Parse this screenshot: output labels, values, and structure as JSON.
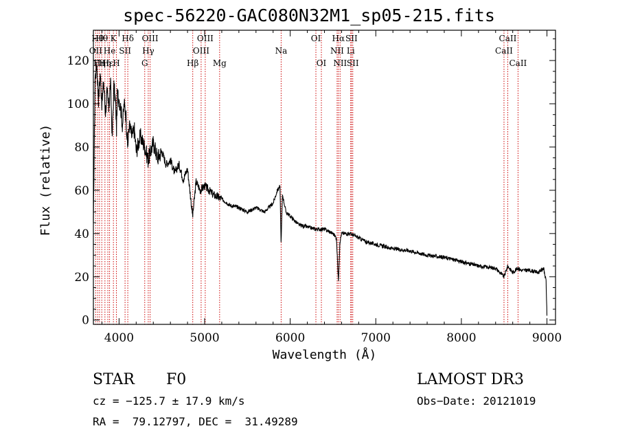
{
  "colors": {
    "line": "#000000",
    "marker": "#cc0000"
  },
  "chart_data": {
    "type": "line",
    "title": "spec-56220-GAC080N32M1_sp05-215.fits",
    "xlabel": "Wavelength (Å)",
    "ylabel": "Flux (relative)",
    "xlim": [
      3700,
      9100
    ],
    "ylim": [
      -2,
      134
    ],
    "xticks": [
      4000,
      5000,
      6000,
      7000,
      8000,
      9000
    ],
    "yticks": [
      0,
      20,
      40,
      60,
      80,
      100,
      120
    ],
    "series": [
      {
        "name": "spectrum",
        "x": [
          3700,
          3720,
          3740,
          3760,
          3780,
          3800,
          3820,
          3840,
          3860,
          3880,
          3900,
          3920,
          3940,
          3960,
          3970,
          3980,
          4000,
          4020,
          4040,
          4060,
          4080,
          4100,
          4120,
          4150,
          4180,
          4200,
          4250,
          4300,
          4340,
          4400,
          4450,
          4500,
          4550,
          4600,
          4650,
          4700,
          4750,
          4800,
          4860,
          4900,
          4950,
          5000,
          5050,
          5100,
          5150,
          5200,
          5300,
          5400,
          5500,
          5600,
          5700,
          5800,
          5850,
          5880,
          5893,
          5910,
          5950,
          6000,
          6050,
          6100,
          6200,
          6300,
          6400,
          6500,
          6540,
          6563,
          6580,
          6600,
          6700,
          6800,
          6900,
          7000,
          7200,
          7400,
          7600,
          7800,
          8000,
          8200,
          8400,
          8498,
          8542,
          8600,
          8662,
          8700,
          8800,
          8900,
          8960,
          8990,
          9000
        ],
        "y": [
          45,
          112,
          118,
          102,
          114,
          100,
          110,
          96,
          105,
          98,
          110,
          85,
          108,
          100,
          88,
          105,
          102,
          98,
          90,
          100,
          95,
          80,
          90,
          85,
          88,
          78,
          85,
          80,
          74,
          82,
          75,
          78,
          72,
          74,
          68,
          72,
          65,
          70,
          48,
          64,
          60,
          62,
          60,
          58,
          57,
          56,
          53,
          52,
          50,
          52,
          50,
          54,
          60,
          62,
          36,
          58,
          50,
          48,
          46,
          44,
          43,
          42,
          42,
          40,
          38,
          18,
          36,
          40,
          40,
          38,
          36,
          35,
          33,
          32,
          30,
          29,
          27,
          25,
          24,
          20,
          25,
          22,
          24,
          23,
          23,
          22,
          24,
          18,
          2
        ]
      }
    ],
    "line_markers": [
      {
        "wl": 3727,
        "label": "OII",
        "row": 2
      },
      {
        "wl": 3750,
        "label": "Hθ",
        "row": 1
      },
      {
        "wl": 3771,
        "label": "Hη",
        "row": 3
      },
      {
        "wl": 3798,
        "label": "Hθ",
        "row": 1
      },
      {
        "wl": 3835,
        "label": "Hη",
        "row": 3
      },
      {
        "wl": 3869,
        "label": "Hε",
        "row": 3
      },
      {
        "wl": 3889,
        "label": "He",
        "row": 2
      },
      {
        "wl": 3934,
        "label": "K",
        "row": 1
      },
      {
        "wl": 3969,
        "label": "H",
        "row": 3
      },
      {
        "wl": 4070,
        "label": "SII",
        "row": 2
      },
      {
        "wl": 4102,
        "label": "Hδ",
        "row": 1
      },
      {
        "wl": 4300,
        "label": "G",
        "row": 3
      },
      {
        "wl": 4341,
        "label": "Hγ",
        "row": 2
      },
      {
        "wl": 4363,
        "label": "OIII",
        "row": 1
      },
      {
        "wl": 4861,
        "label": "Hβ",
        "row": 3
      },
      {
        "wl": 4959,
        "label": "OIII",
        "row": 2
      },
      {
        "wl": 5007,
        "label": "OIII",
        "row": 1
      },
      {
        "wl": 5175,
        "label": "Mg",
        "row": 3
      },
      {
        "wl": 5894,
        "label": "Na",
        "row": 2
      },
      {
        "wl": 6300,
        "label": "OI",
        "row": 1
      },
      {
        "wl": 6364,
        "label": "OI",
        "row": 3
      },
      {
        "wl": 6548,
        "label": "NII",
        "row": 2
      },
      {
        "wl": 6563,
        "label": "Hα",
        "row": 1
      },
      {
        "wl": 6583,
        "label": "NII",
        "row": 3
      },
      {
        "wl": 6707,
        "label": "Li",
        "row": 2
      },
      {
        "wl": 6716,
        "label": "SII",
        "row": 1
      },
      {
        "wl": 6731,
        "label": "SII",
        "row": 3
      },
      {
        "wl": 8498,
        "label": "CaII",
        "row": 2
      },
      {
        "wl": 8542,
        "label": "CaII",
        "row": 1
      },
      {
        "wl": 8662,
        "label": "CaII",
        "row": 3
      }
    ]
  },
  "info": {
    "object_class": "STAR",
    "subclass": "F0",
    "survey": "LAMOST DR3",
    "redshift": "cz = −125.7 ± 17.9 km/s",
    "obs_date": "Obs−Date: 20121019",
    "coords": "RA =  79.12797, DEC =  31.49289"
  }
}
